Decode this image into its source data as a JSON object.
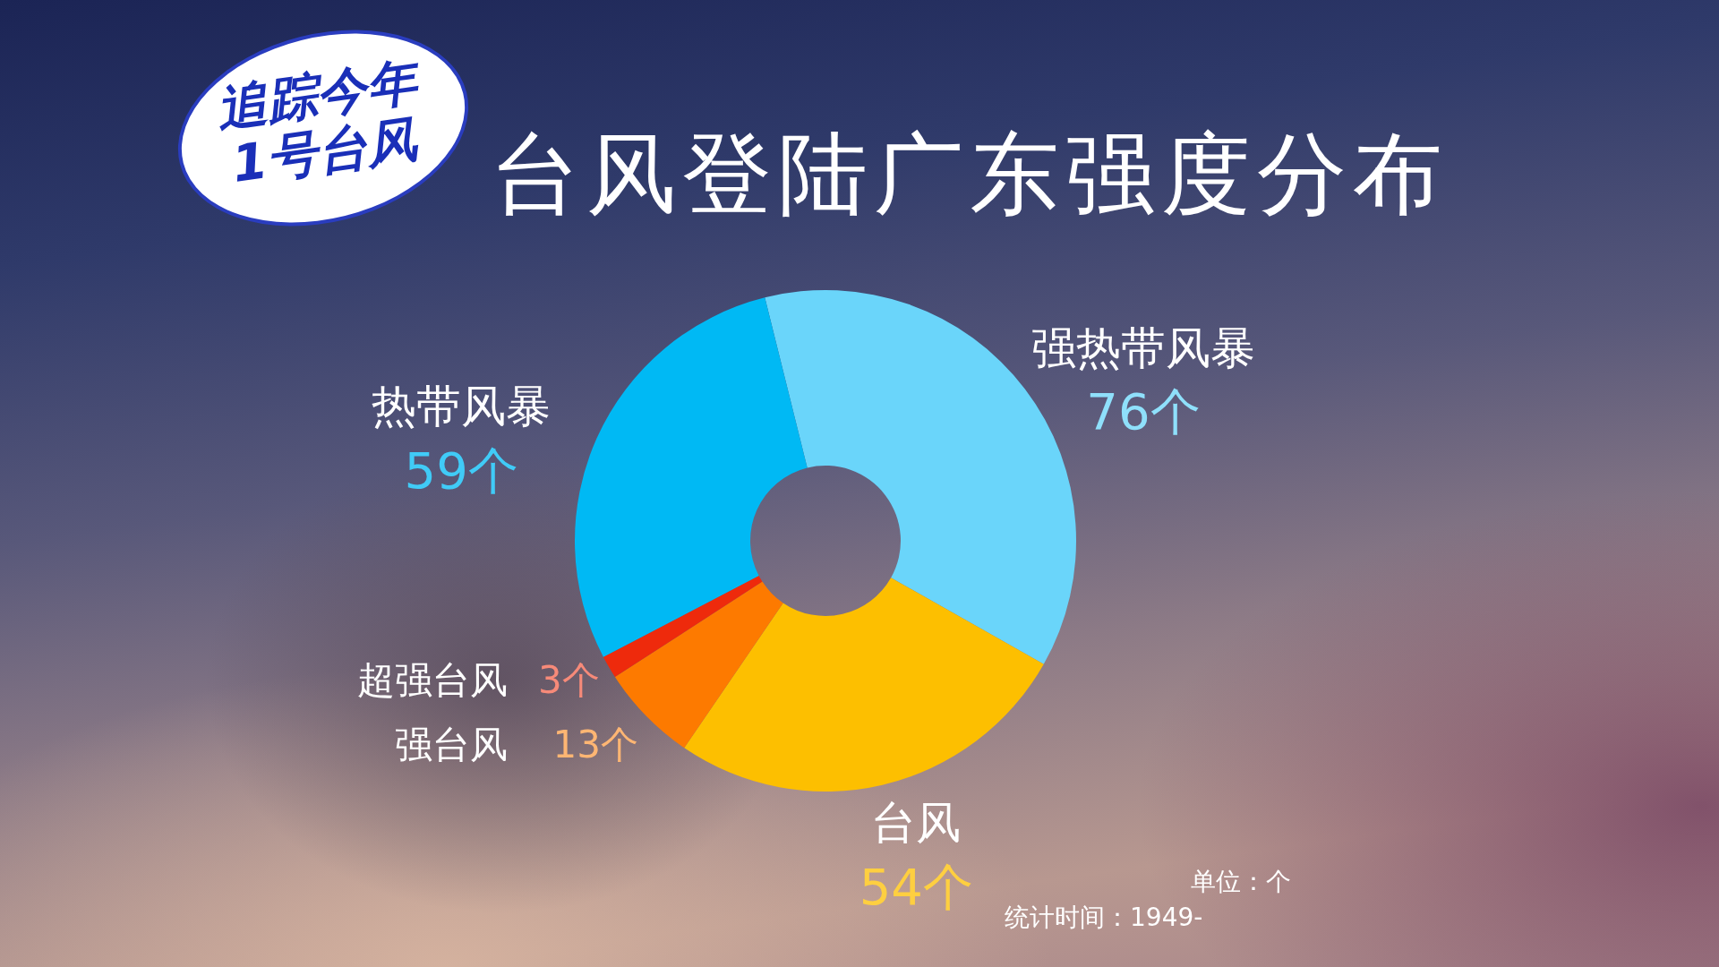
{
  "chart_data": {
    "type": "donut",
    "title": "台风登陆广东强度分布",
    "subtitle": "追踪今年1号台风",
    "categories": [
      "强热带风暴",
      "台风",
      "强台风",
      "超强台风",
      "热带风暴"
    ],
    "values": [
      76,
      54,
      13,
      3,
      59
    ],
    "colors": [
      "#6ad5fa",
      "#fdbf00",
      "#fd7a00",
      "#ee2a0c",
      "#00b9f4"
    ],
    "value_labels": [
      "76个",
      "54个",
      "13个",
      "3个",
      "59个"
    ],
    "annotations": [
      "单位：个",
      "统计时间：1949-"
    ],
    "legend": false
  }
}
